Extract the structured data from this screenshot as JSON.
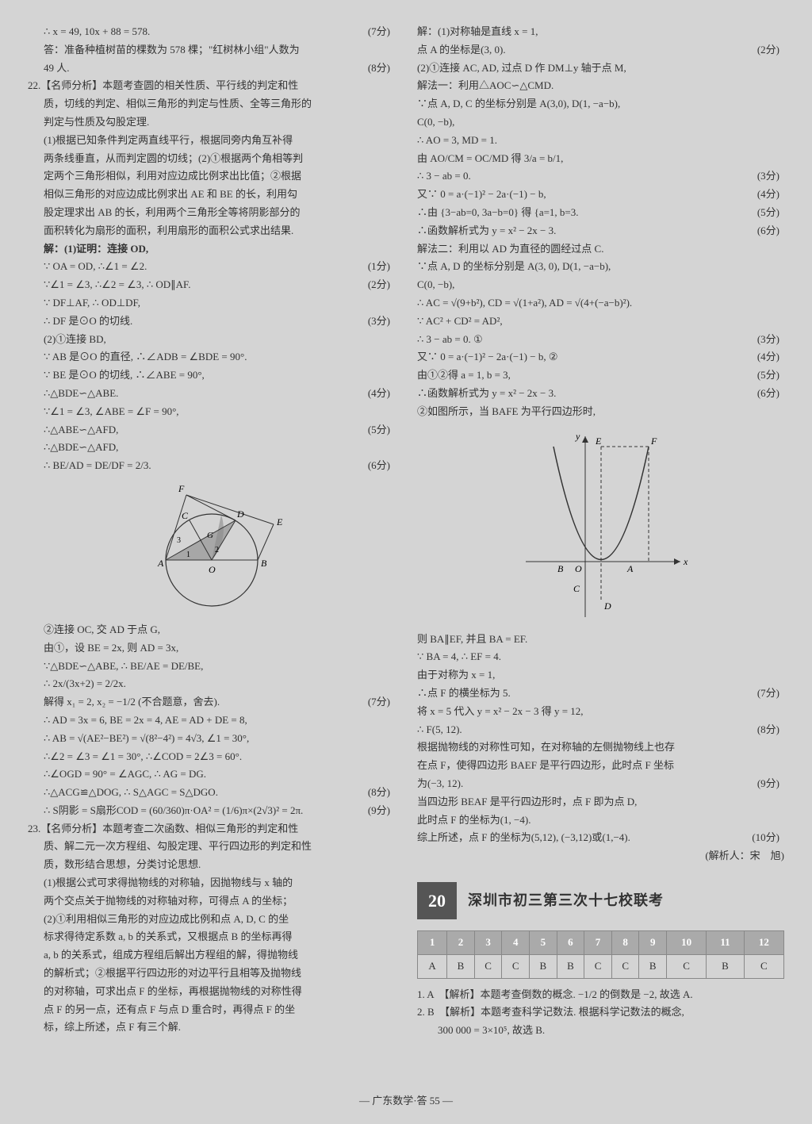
{
  "left": {
    "l0": "∴ x = 49, 10x + 88 = 578.",
    "s0": "(7分)",
    "l1": "答：准备种植树苗的棵数为 578 棵；\"红树林小组\"人数为",
    "l2": "49 人.",
    "s2": "(8分)",
    "q22": "22.【名师分析】本题考查圆的相关性质、平行线的判定和性",
    "q22b": "质，切线的判定、相似三角形的判定与性质、全等三角形的",
    "q22c": "判定与性质及勾股定理.",
    "l3": "(1)根据已知条件判定两直线平行，根据同旁内角互补得",
    "l4": "两条线垂直，从而判定圆的切线；(2)①根据两个角相等判",
    "l5": "定两个三角形相似，利用对应边成比例求出比值；②根据",
    "l6": "相似三角形的对应边成比例求出 AE 和 BE 的长，利用勾",
    "l7": "股定理求出 AB 的长，利用两个三角形全等将阴影部分的",
    "l8": "面积转化为扇形的面积，利用扇形的面积公式求出结果.",
    "l9": "解：(1)证明：连接 OD,",
    "l10": "∵ OA = OD, ∴∠1 = ∠2.",
    "s10": "(1分)",
    "l11": "∵∠1 = ∠3, ∴∠2 = ∠3, ∴ OD∥AF.",
    "s11": "(2分)",
    "l12": "∵ DF⊥AF, ∴ OD⊥DF,",
    "l13": "∴ DF 是⊙O 的切线.",
    "s13": "(3分)",
    "l14": "(2)①连接 BD,",
    "l15": "∵ AB 是⊙O 的直径, ∴∠ADB = ∠BDE = 90°.",
    "l16": "∵ BE 是⊙O 的切线, ∴∠ABE = 90°,",
    "l17": "∴△BDE∽△ABE.",
    "s17": "(4分)",
    "l18": "∵∠1 = ∠3, ∠ABE = ∠F = 90°,",
    "l19": "∴△ABE∽△AFD,",
    "s19": "(5分)",
    "l20": "∴△BDE∽△AFD,",
    "l21": "∴ BE/AD = DE/DF = 2/3.",
    "s21": "(6分)",
    "l22": "②连接 OC, 交 AD 于点 G,",
    "l23": "由①，设 BE = 2x, 则 AD = 3x,",
    "l24": "∵△BDE∽△ABE, ∴ BE/AE = DE/BE,",
    "l25": "∴ 2x/(3x+2) = 2/2x.",
    "l26": "解得 x₁ = 2, x₂ = −1/2 (不合题意，舍去).",
    "s26": "(7分)",
    "l27": "∴ AD = 3x = 6, BE = 2x = 4, AE = AD + DE = 8,",
    "l28": "∴ AB = √(AE²−BE²) = √(8²−4²) = 4√3, ∠1 = 30°,",
    "l29": "∴∠2 = ∠3 = ∠1 = 30°, ∴∠COD = 2∠3 = 60°.",
    "l30": "∴∠OGD = 90° = ∠AGC, ∴ AG = DG.",
    "l31": "∴△ACG≌△DOG, ∴ S△AGC = S△DGO.",
    "s31": "(8分)",
    "l32": "∴ S阴影 = S扇形COD = (60/360)π·OA² = (1/6)π×(2√3)² = 2π.",
    "s32": "(9分)",
    "q23": "23.【名师分析】本题考查二次函数、相似三角形的判定和性",
    "q23b": "质、解二元一次方程组、勾股定理、平行四边形的判定和性",
    "q23c": "质，数形结合思想，分类讨论思想.",
    "l33": "(1)根据公式可求得抛物线的对称轴，因抛物线与 x 轴的",
    "l34": "两个交点关于抛物线的对称轴对称，可得点 A 的坐标；",
    "l35": "(2)①利用相似三角形的对应边成比例和点 A, D, C 的坐",
    "l36": "标求得待定系数 a, b 的关系式，又根据点 B 的坐标再得",
    "l37": "a, b 的关系式，组成方程组后解出方程组的解，得抛物线",
    "l38": "的解析式；②根据平行四边形的对边平行且相等及抛物线",
    "l39": "的对称轴，可求出点 F 的坐标，再根据抛物线的对称性得",
    "l40": "点 F 的另一点，还有点 F 与点 D 重合时，再得点 F 的坐",
    "l41": "标，综上所述，点 F 有三个解."
  },
  "right": {
    "r0": "解：(1)对称轴是直线 x = 1,",
    "r1": "点 A 的坐标是(3, 0).",
    "rs1": "(2分)",
    "r2": "(2)①连接 AC, AD, 过点 D 作 DM⊥y 轴于点 M,",
    "r3": "解法一：利用△AOC∽△CMD.",
    "r4": "∵点 A, D, C 的坐标分别是 A(3,0), D(1, −a−b),",
    "r5": "C(0, −b),",
    "r6": "∴ AO = 3, MD = 1.",
    "r7": "由 AO/CM = OC/MD 得 3/a = b/1,",
    "r8": "∴ 3 − ab = 0.",
    "rs8": "(3分)",
    "r9": "又∵ 0 = a·(−1)² − 2a·(−1) − b,",
    "rs9": "(4分)",
    "r10": "∴由 {3−ab=0, 3a−b=0} 得 {a=1, b=3.",
    "rs10": "(5分)",
    "r11": "∴函数解析式为 y = x² − 2x − 3.",
    "rs11": "(6分)",
    "r12": "解法二：利用以 AD 为直径的圆经过点 C.",
    "r13": "∵点 A, D 的坐标分别是 A(3, 0), D(1, −a−b),",
    "r14": "C(0, −b),",
    "r15": "∴ AC = √(9+b²), CD = √(1+a²), AD = √(4+(−a−b)²).",
    "r16": "∵ AC² + CD² = AD²,",
    "r17": "∴ 3 − ab = 0.   ①",
    "rs17": "(3分)",
    "r18": "又∵ 0 = a·(−1)² − 2a·(−1) − b,   ②",
    "rs18": "(4分)",
    "r19": "由①②得 a = 1, b = 3,",
    "rs19": "(5分)",
    "r20": "∴函数解析式为 y = x² − 2x − 3.",
    "rs20": "(6分)",
    "r21": "②如图所示，当 BAFE 为平行四边形时,",
    "r22": "则 BA∥EF, 并且 BA = EF.",
    "r23": "∵ BA = 4, ∴ EF = 4.",
    "r24": "由于对称为 x = 1,",
    "r25": "∴点 F 的横坐标为 5.",
    "rs25": "(7分)",
    "r26": "将 x = 5 代入 y = x² − 2x − 3 得 y = 12,",
    "r27": "∴ F(5, 12).",
    "rs27": "(8分)",
    "r28": "根据抛物线的对称性可知，在对称轴的左侧抛物线上也存",
    "r29": "在点 F，使得四边形 BAEF 是平行四边形，此时点 F 坐标",
    "r30": "为(−3, 12).",
    "rs30": "(9分)",
    "r31": "当四边形 BEAF 是平行四边形时，点 F 即为点 D,",
    "r32": "此时点 F 的坐标为(1, −4).",
    "r33": "综上所述，点 F 的坐标为(5,12), (−3,12)或(1,−4).",
    "rs33": "(10分)",
    "r34": "(解析人：宋　旭)"
  },
  "section": {
    "num": "20",
    "title": "深圳市初三第三次十七校联考"
  },
  "answers": {
    "cols": [
      "1",
      "2",
      "3",
      "4",
      "5",
      "6",
      "7",
      "8",
      "9",
      "10",
      "11",
      "12"
    ],
    "row": [
      "A",
      "B",
      "C",
      "C",
      "B",
      "B",
      "C",
      "C",
      "B",
      "C",
      "B",
      "C"
    ]
  },
  "items": {
    "i1": "1. A　【解析】本题考查倒数的概念. −1/2 的倒数是 −2, 故选 A.",
    "i2": "2. B　【解析】本题考查科学记数法. 根据科学记数法的概念,",
    "i2b": "　　300 000 = 3×10⁵, 故选 B."
  },
  "footer": "— 广东数学·答 55 —",
  "graph": {
    "labels": {
      "E": "E",
      "F": "F",
      "B": "B",
      "A": "A",
      "O": "O",
      "C": "C",
      "D": "D",
      "x": "x",
      "y": "y"
    }
  },
  "circle_fig": {
    "labels": {
      "A": "A",
      "B": "B",
      "O": "O",
      "C": "C",
      "D": "D",
      "E": "E",
      "F": "F",
      "G": "G",
      "n1": "1",
      "n2": "2",
      "n3": "3"
    }
  }
}
